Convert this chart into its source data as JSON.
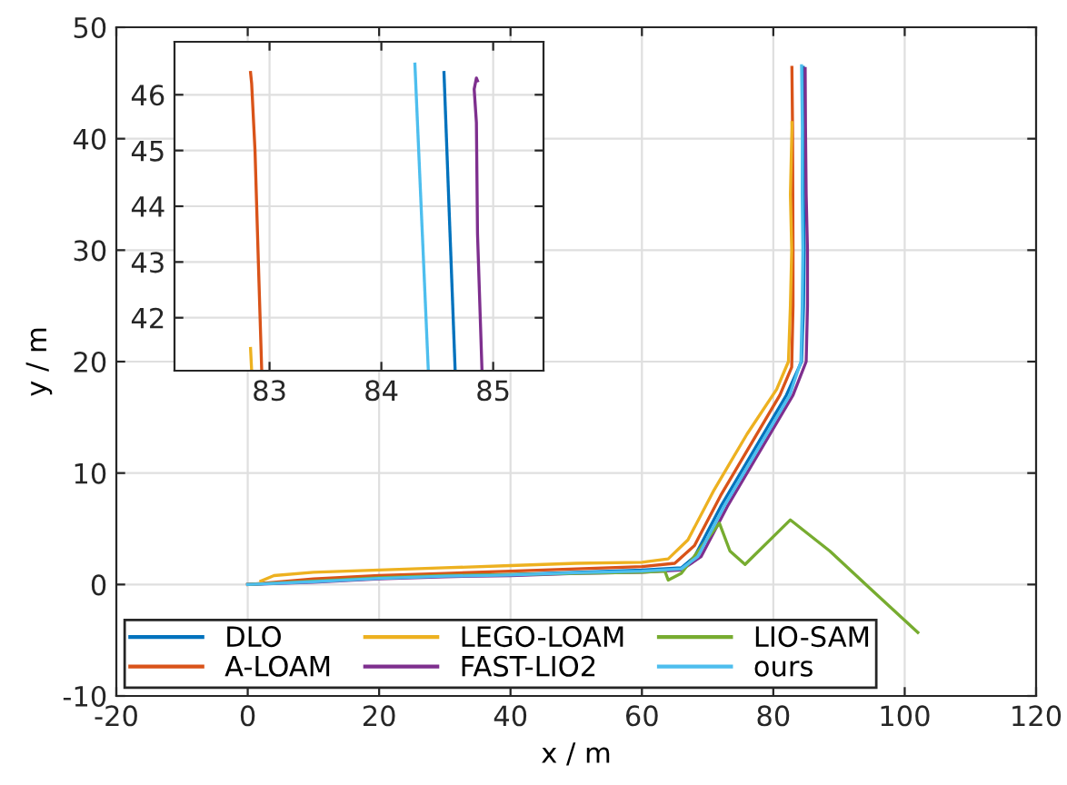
{
  "chart_data": [
    {
      "type": "line",
      "xlabel": "x / m",
      "ylabel": "y / m",
      "xlim": [
        -20,
        120
      ],
      "ylim": [
        -10,
        50
      ],
      "xticks": [
        -20,
        0,
        20,
        40,
        60,
        80,
        100,
        120
      ],
      "yticks": [
        -10,
        0,
        10,
        20,
        30,
        40,
        50
      ],
      "grid": true,
      "legend": "bottom left",
      "series": [
        {
          "name": "DLO",
          "color": "#0072bd",
          "x": [
            0,
            10,
            20,
            30,
            40,
            50,
            60,
            66,
            68,
            72,
            77,
            82,
            84.3,
            84.6,
            84.7,
            84.6,
            84.66,
            84.56
          ],
          "values": [
            0,
            0.3,
            0.6,
            0.8,
            0.9,
            1.1,
            1.3,
            1.5,
            2.5,
            7,
            12,
            17,
            20,
            25,
            30,
            35,
            41,
            46.4
          ]
        },
        {
          "name": "A-LOAM",
          "color": "#d95319",
          "x": [
            0,
            10,
            20,
            30,
            40,
            50,
            60,
            65,
            68,
            72,
            77,
            81,
            82.8,
            83,
            83,
            82.93,
            82.83
          ],
          "values": [
            0,
            0.5,
            0.8,
            1.0,
            1.2,
            1.4,
            1.6,
            1.9,
            3.5,
            8,
            13,
            17,
            19.5,
            25,
            30,
            41,
            46.4
          ]
        },
        {
          "name": "LEGO-LOAM",
          "color": "#edb120",
          "x": [
            2,
            4,
            10,
            20,
            30,
            40,
            50,
            60,
            64,
            67,
            71,
            76,
            80.5,
            82.3,
            82.6,
            82.8,
            82.6,
            82.84,
            82.83
          ],
          "values": [
            0.3,
            0.8,
            1.1,
            1.3,
            1.5,
            1.7,
            1.9,
            2.0,
            2.3,
            4,
            8.5,
            13.5,
            17.5,
            20,
            25,
            30,
            35,
            41,
            41.45
          ]
        },
        {
          "name": "FAST-LIO2",
          "color": "#7e2f8e",
          "x": [
            0,
            10,
            20,
            30,
            40,
            50,
            60,
            66,
            69,
            73,
            78,
            83,
            85,
            85.2,
            85.2,
            85,
            84.9,
            84.85
          ],
          "values": [
            0,
            0.2,
            0.5,
            0.7,
            0.8,
            1.0,
            1.1,
            1.3,
            2.5,
            7,
            12,
            17,
            20,
            25,
            30,
            35,
            41,
            46.3
          ]
        },
        {
          "name": "LIO-SAM",
          "color": "#77ac30",
          "x": [
            0,
            10,
            20,
            30,
            40,
            50,
            60,
            63.5,
            64,
            66,
            71.8,
            73.4,
            75.7,
            82.6,
            88.6,
            95,
            102
          ],
          "values": [
            0,
            0.3,
            0.6,
            0.8,
            0.9,
            1.0,
            1.1,
            1.2,
            0.4,
            1.0,
            5.5,
            3,
            1.8,
            5.8,
            3,
            -0.5,
            -4.3
          ]
        },
        {
          "name": "ours",
          "color": "#4dbeee",
          "x": [
            0,
            10,
            20,
            30,
            40,
            50,
            60,
            66,
            68.5,
            72.5,
            77.5,
            82.5,
            84.2,
            84.4,
            84.5,
            84.4,
            84.42,
            84.3
          ],
          "values": [
            0,
            0.25,
            0.55,
            0.75,
            0.85,
            1.05,
            1.2,
            1.4,
            2.5,
            7,
            12,
            17,
            20,
            25,
            30,
            35,
            41,
            46.55
          ]
        }
      ]
    },
    {
      "type": "line",
      "xlim": [
        82.15,
        85.45
      ],
      "ylim": [
        41.05,
        46.95
      ],
      "xticks": [
        83,
        84,
        85
      ],
      "yticks": [
        42,
        43,
        44,
        45,
        46
      ],
      "grid": true,
      "series": [
        {
          "color": "#d95319",
          "x": [
            82.93,
            82.9,
            82.87,
            82.84,
            82.83
          ],
          "values": [
            41.05,
            43.0,
            45.0,
            46.2,
            46.4
          ]
        },
        {
          "color": "#edb120",
          "x": [
            82.84,
            82.83
          ],
          "values": [
            41.05,
            41.45
          ]
        },
        {
          "color": "#4dbeee",
          "x": [
            84.42,
            84.3
          ],
          "values": [
            41.05,
            46.55
          ]
        },
        {
          "color": "#0072bd",
          "x": [
            84.66,
            84.56
          ],
          "values": [
            41.05,
            46.4
          ]
        },
        {
          "color": "#7e2f8e",
          "x": [
            84.9,
            84.86,
            84.85,
            84.83,
            84.85,
            84.86
          ],
          "values": [
            41.05,
            43.5,
            45.5,
            46.1,
            46.3,
            46.25
          ]
        }
      ]
    }
  ]
}
